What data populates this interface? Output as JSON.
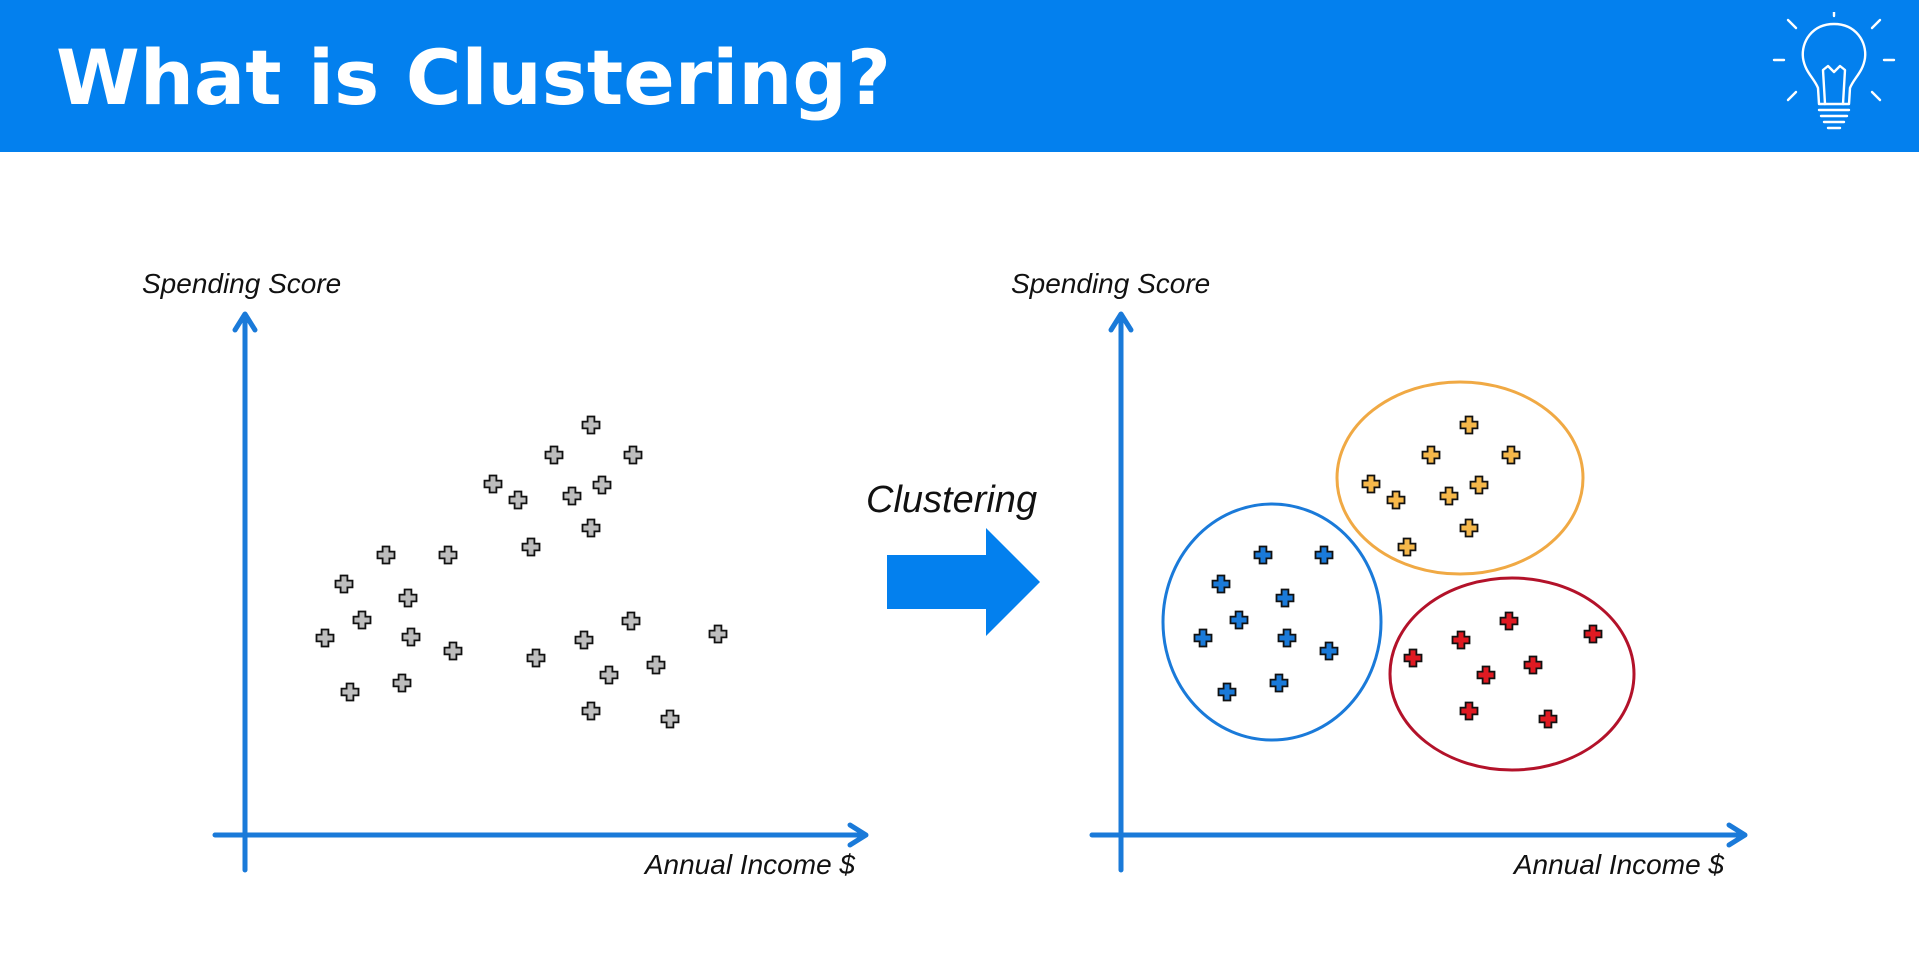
{
  "title": "What is Clustering?",
  "icons": {
    "header": "lightbulb-icon",
    "arrow": "right-arrow-icon",
    "point": "plus-marker-icon"
  },
  "colors": {
    "header_bg": "#0380ee",
    "axis": "#1a7ad9",
    "arrow": "#0380ee",
    "unclustered_point": "#bdbdbd",
    "cluster_blue": "#1a7ad9",
    "cluster_orange": "#f6b84a",
    "cluster_red": "#e01a22",
    "ellipse_blue": "#1a7ad9",
    "ellipse_orange": "#f0a944",
    "ellipse_red": "#b3122a"
  },
  "left_plot": {
    "y_label": "Spending Score",
    "x_label": "Annual Income $"
  },
  "arrow_label": "Clustering",
  "right_plot": {
    "y_label": "Spending Score",
    "x_label": "Annual Income $",
    "clusters": [
      "blue",
      "orange",
      "red"
    ]
  }
}
